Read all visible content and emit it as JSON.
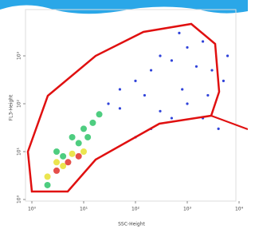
{
  "chart_data": {
    "type": "scatter",
    "x_label": "SSC-Height",
    "y_label": "FL3-Height",
    "log_x": true,
    "log_y": true,
    "xlim": [
      1,
      10000
    ],
    "ylim": [
      1,
      10000
    ],
    "xticks": [
      {
        "value": 1,
        "label": "10⁰"
      },
      {
        "value": 10,
        "label": "10¹"
      },
      {
        "value": 100,
        "label": "10²"
      },
      {
        "value": 1000,
        "label": "10³"
      },
      {
        "value": 10000,
        "label": "10⁴"
      }
    ],
    "yticks": [
      {
        "value": 1,
        "label": "10⁰"
      },
      {
        "value": 10,
        "label": "10¹"
      },
      {
        "value": 100,
        "label": "10²"
      },
      {
        "value": 1000,
        "label": "10³"
      }
    ],
    "series": [
      {
        "color": "#1a2fd6",
        "x": [
          30,
          50,
          100,
          200,
          300,
          500,
          1000,
          2000,
          3000,
          5000,
          1000,
          500,
          200,
          100,
          2000,
          4000,
          800,
          1500,
          300,
          6000,
          50,
          150,
          700,
          2500
        ],
        "y": [
          100,
          200,
          300,
          500,
          1000,
          800,
          1500,
          2000,
          500,
          300,
          100,
          50,
          30,
          20,
          50,
          30,
          200,
          600,
          70,
          1000,
          80,
          150,
          3000,
          150
        ]
      },
      {
        "color": "#2fc46a",
        "x": [
          2,
          3,
          6,
          10,
          15,
          20,
          8,
          12,
          4
        ],
        "y": [
          2,
          10,
          20,
          30,
          40,
          60,
          15,
          20,
          8
        ]
      },
      {
        "color": "#e8e030",
        "x": [
          2,
          4,
          6,
          10,
          3
        ],
        "y": [
          3,
          5,
          9,
          10,
          6
        ]
      },
      {
        "color": "#e0302a",
        "x": [
          3,
          5,
          8
        ],
        "y": [
          4,
          6,
          8
        ]
      }
    ]
  }
}
